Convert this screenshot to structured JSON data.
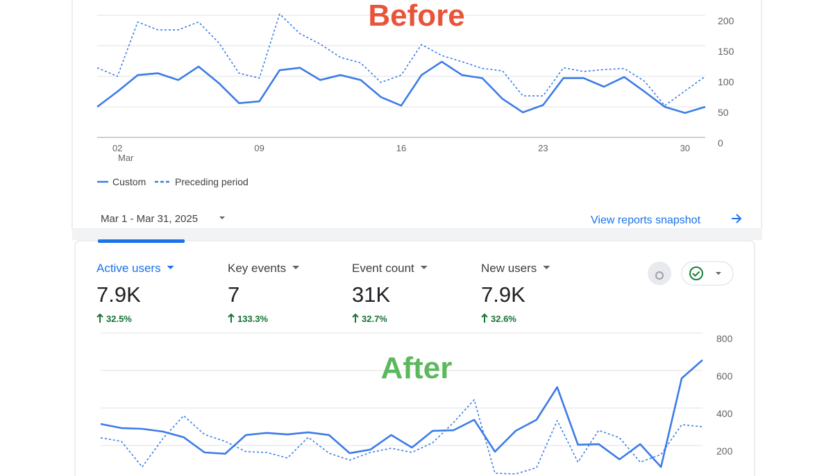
{
  "before_label": "Before",
  "after_label": "After",
  "legend_note": "Mar",
  "date_range": "Mar 1 - Mar 31, 2025",
  "snapshot_link": "View reports snapshot",
  "metrics": [
    {
      "label": "Active users",
      "value": "7.9K",
      "change": "32.5%"
    },
    {
      "label": "Key events",
      "value": "7",
      "change": "133.3%"
    },
    {
      "label": "Event count",
      "value": "31K",
      "change": "32.7%"
    },
    {
      "label": "New users",
      "value": "7.9K",
      "change": "32.6%"
    }
  ],
  "chart_data": [
    {
      "type": "line",
      "categories": [
        null,
        "02",
        null,
        null,
        null,
        null,
        null,
        null,
        "09",
        null,
        null,
        null,
        null,
        null,
        null,
        "16",
        null,
        null,
        null,
        null,
        null,
        null,
        "23",
        null,
        null,
        null,
        null,
        null,
        null,
        "30",
        null
      ],
      "series": [
        {
          "name": "Custom",
          "color": "#3b7be8",
          "style": "solid",
          "values": [
            50,
            75,
            102,
            105,
            94,
            116,
            89,
            56,
            59,
            110,
            114,
            94,
            102,
            94,
            66,
            52,
            102,
            124,
            102,
            97,
            63,
            41,
            53,
            97,
            97,
            83,
            99,
            75,
            50,
            40,
            50
          ]
        },
        {
          "name": "Preceding period",
          "color": "#3b7be8",
          "style": "dashed",
          "values": [
            114,
            100,
            189,
            176,
            176,
            189,
            155,
            105,
            97,
            202,
            170,
            153,
            131,
            122,
            90,
            102,
            152,
            134,
            124,
            113,
            109,
            68,
            68,
            114,
            108,
            111,
            113,
            92,
            52,
            76,
            100
          ]
        }
      ],
      "ylim": [
        0,
        200
      ],
      "yticks": [
        0,
        50,
        100,
        150,
        200
      ],
      "grid": true
    },
    {
      "type": "line",
      "series": [
        {
          "color": "#3b7be8",
          "style": "solid",
          "values": [
            315,
            293,
            289,
            274,
            244,
            163,
            156,
            256,
            267,
            259,
            270,
            256,
            159,
            178,
            256,
            189,
            278,
            281,
            337,
            167,
            278,
            337,
            511,
            204,
            207,
            126,
            207,
            85,
            559,
            656
          ]
        },
        {
          "color": "#3b7be8",
          "style": "dashed",
          "values": [
            241,
            222,
            85,
            237,
            359,
            259,
            222,
            167,
            163,
            133,
            244,
            159,
            122,
            163,
            185,
            163,
            215,
            322,
            444,
            52,
            48,
            81,
            333,
            111,
            281,
            241,
            111,
            152,
            311,
            300
          ]
        }
      ],
      "ylim": [
        0,
        800
      ],
      "yticks": [
        200,
        400,
        600,
        800
      ],
      "grid": true
    }
  ]
}
